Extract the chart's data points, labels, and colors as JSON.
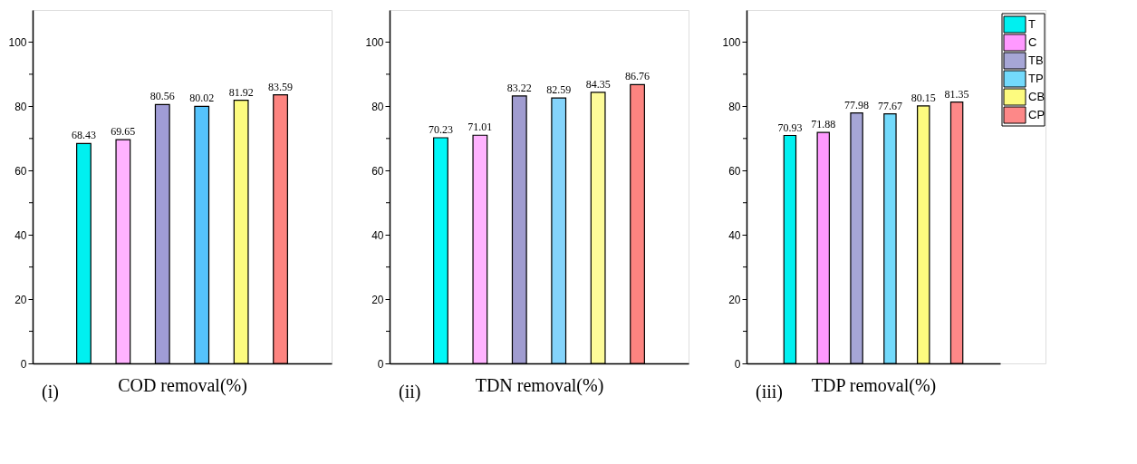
{
  "chart_data": [
    {
      "type": "bar",
      "xlabel": "COD removal(%)",
      "annotations": [
        "(i)"
      ],
      "categories": [
        null
      ],
      "ylim": [
        0,
        110
      ],
      "yticks": [
        0,
        {
          "value": 10,
          "label": null
        },
        20,
        {
          "value": 30,
          "label": null
        },
        40,
        {
          "value": 50,
          "label": null
        },
        60,
        {
          "value": 70,
          "label": null
        },
        80,
        {
          "value": 90,
          "label": null
        },
        100
      ],
      "data_labels": true,
      "legend": false,
      "series": [
        {
          "color": "#00f0f0",
          "values": [
            68.43
          ]
        },
        {
          "color": "#ffb3ff",
          "values": [
            69.65
          ]
        },
        {
          "color": "#a09cd6",
          "values": [
            80.56
          ]
        },
        {
          "color": "#55c3fc",
          "values": [
            80.02
          ]
        },
        {
          "color": "#fdfb7f",
          "values": [
            81.92
          ]
        },
        {
          "color": "#fd8480",
          "values": [
            83.59
          ]
        }
      ]
    },
    {
      "type": "bar",
      "xlabel": "TDN removal(%)",
      "annotations": [
        "(ii)"
      ],
      "categories": [
        null
      ],
      "ylim": [
        0,
        110
      ],
      "yticks": [
        0,
        {
          "value": 10,
          "label": null
        },
        20,
        {
          "value": 30,
          "label": null
        },
        40,
        {
          "value": 50,
          "label": null
        },
        60,
        {
          "value": 70,
          "label": null
        },
        80,
        {
          "value": 90,
          "label": null
        },
        100
      ],
      "data_labels": true,
      "legend": false,
      "series": [
        {
          "color": "#00f8f8",
          "values": [
            70.23
          ]
        },
        {
          "color": "#ffb3ff",
          "values": [
            71.01
          ]
        },
        {
          "color": "#a09cd0",
          "values": [
            83.22
          ]
        },
        {
          "color": "#84d4fc",
          "values": [
            82.59
          ]
        },
        {
          "color": "#fdfb99",
          "values": [
            84.35
          ]
        },
        {
          "color": "#fd8480",
          "values": [
            86.76
          ]
        }
      ]
    },
    {
      "type": "bar",
      "xlabel": "TDP removal(%)",
      "annotations": [
        "(iii)"
      ],
      "categories": [
        null
      ],
      "ylim": [
        0,
        110
      ],
      "yticks": [
        0,
        {
          "value": 10,
          "label": null
        },
        20,
        {
          "value": 30,
          "label": null
        },
        40,
        {
          "value": 50,
          "label": null
        },
        60,
        {
          "value": 70,
          "label": null
        },
        80,
        {
          "value": 90,
          "label": null
        },
        100
      ],
      "data_labels": true,
      "legend": "top right",
      "series": [
        {
          "name": "T",
          "color": "#00f0f0",
          "values": [
            70.93
          ]
        },
        {
          "name": "C",
          "color": "#ff99ff",
          "values": [
            71.88
          ]
        },
        {
          "name": "TB",
          "color": "#a6a6d6",
          "values": [
            77.98
          ]
        },
        {
          "name": "TP",
          "color": "#73dafc",
          "values": [
            77.67
          ]
        },
        {
          "name": "CB",
          "color": "#fdfb7f",
          "values": [
            80.15
          ]
        },
        {
          "name": "CP",
          "color": "#fd8888",
          "values": [
            81.35
          ]
        }
      ]
    }
  ]
}
